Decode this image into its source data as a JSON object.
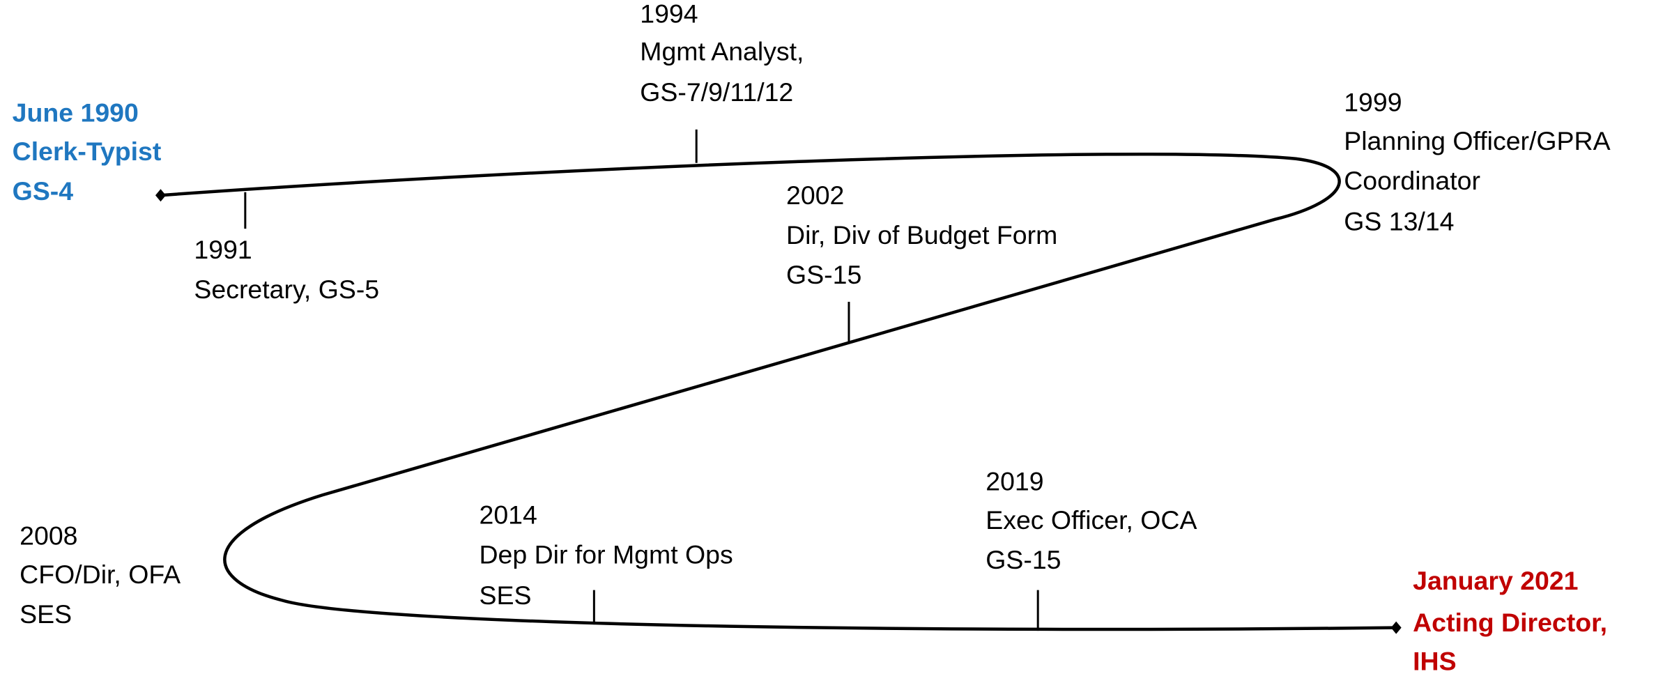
{
  "start": {
    "lines": [
      "June 1990",
      "Clerk-Typist",
      "GS-4"
    ]
  },
  "milestones": [
    {
      "lines": [
        "1991",
        "Secretary, GS-5"
      ]
    },
    {
      "lines": [
        "1994",
        "Mgmt Analyst,",
        "GS-7/9/11/12"
      ]
    },
    {
      "lines": [
        "1999",
        "Planning Officer/GPRA",
        "Coordinator",
        "GS 13/14"
      ]
    },
    {
      "lines": [
        "2002",
        "Dir, Div of Budget Form",
        "GS-15"
      ]
    },
    {
      "lines": [
        "2008",
        "CFO/Dir, OFA",
        "SES"
      ]
    },
    {
      "lines": [
        "2014",
        "Dep Dir for Mgmt Ops",
        "SES"
      ]
    },
    {
      "lines": [
        "2019",
        "Exec Officer, OCA",
        "GS-15"
      ]
    }
  ],
  "end": {
    "lines": [
      "January 2021",
      "Acting Director,",
      "IHS"
    ]
  }
}
